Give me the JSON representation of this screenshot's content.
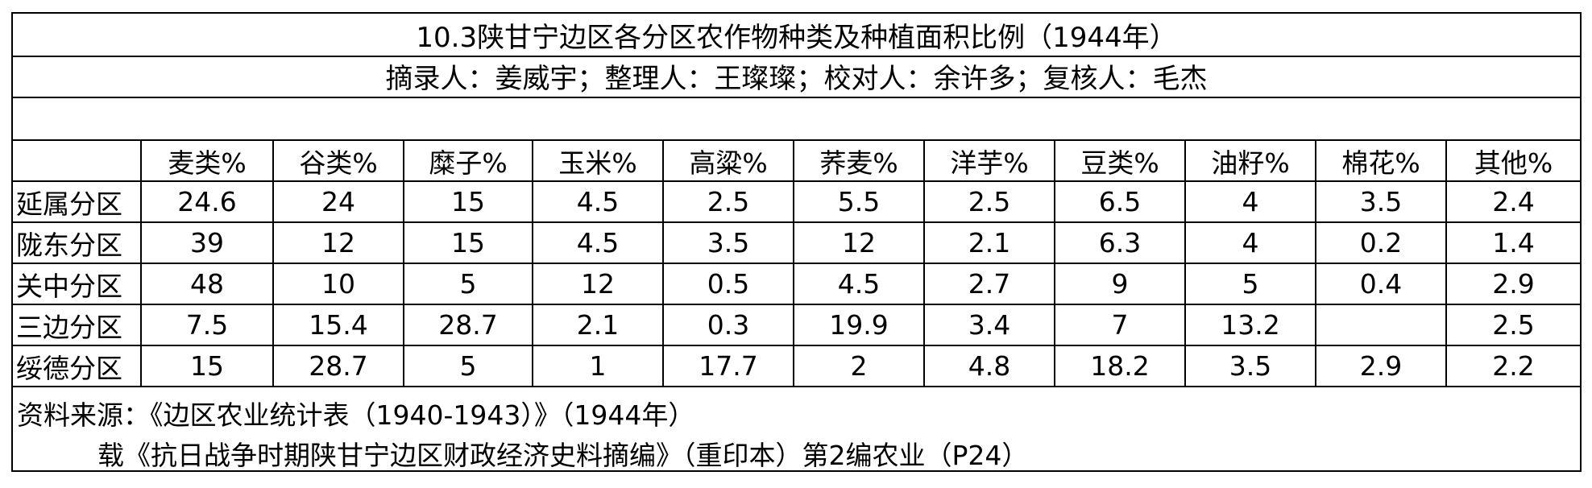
{
  "table": {
    "title": "10.3陕甘宁边区各分区农作物种类及种植面积比例（1944年）",
    "credits": "摘录人：姜威宇；整理人：王璨璨；校对人：余许多；复核人：毛杰",
    "columns": [
      "",
      "麦类%",
      "谷类%",
      "糜子%",
      "玉米%",
      "高粱%",
      "荞麦%",
      "洋芋%",
      "豆类%",
      "油籽%",
      "棉花%",
      "其他%"
    ],
    "rows": [
      {
        "label": "延属分区",
        "values": [
          "24.6",
          "24",
          "15",
          "4.5",
          "2.5",
          "5.5",
          "2.5",
          "6.5",
          "4",
          "3.5",
          "2.4"
        ]
      },
      {
        "label": "陇东分区",
        "values": [
          "39",
          "12",
          "15",
          "4.5",
          "3.5",
          "12",
          "2.1",
          "6.3",
          "4",
          "0.2",
          "1.4"
        ]
      },
      {
        "label": "关中分区",
        "values": [
          "48",
          "10",
          "5",
          "12",
          "0.5",
          "4.5",
          "2.7",
          "9",
          "5",
          "0.4",
          "2.9"
        ]
      },
      {
        "label": "三边分区",
        "values": [
          "7.5",
          "15.4",
          "28.7",
          "2.1",
          "0.3",
          "19.9",
          "3.4",
          "7",
          "13.2",
          "",
          "2.5"
        ]
      },
      {
        "label": "绥德分区",
        "values": [
          "15",
          "28.7",
          "5",
          "1",
          "17.7",
          "2",
          "4.8",
          "18.2",
          "3.5",
          "2.9",
          "2.2"
        ]
      }
    ],
    "source_line1": "资料来源：《边区农业统计表（1940-1943）》（1944年）",
    "source_line2": "载《抗日战争时期陕甘宁边区财政经济史料摘编》（重印本）第2编农业（P24）"
  }
}
